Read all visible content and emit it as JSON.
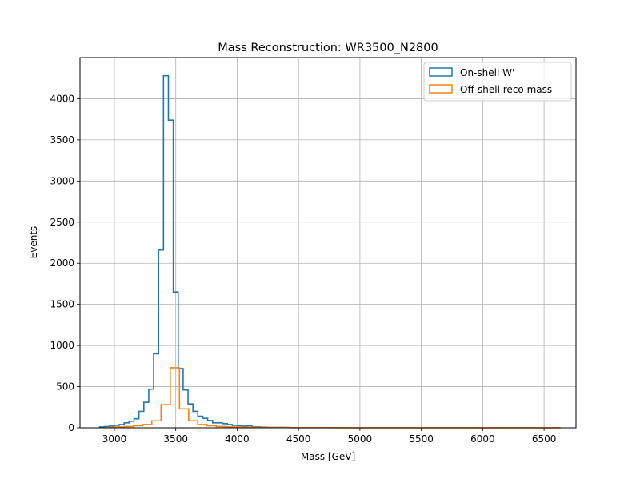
{
  "chart_data": {
    "type": "histogram",
    "title": "Mass Reconstruction: WR3500_N2800",
    "xlabel": "Mass [GeV]",
    "ylabel": "Events",
    "xlim": [
      2720,
      6760
    ],
    "ylim": [
      0,
      4500
    ],
    "xticks": [
      3000,
      3500,
      4000,
      4500,
      5000,
      5500,
      6000,
      6500
    ],
    "yticks": [
      0,
      500,
      1000,
      1500,
      2000,
      2500,
      3000,
      3500,
      4000
    ],
    "grid": true,
    "legend_position": "top-right",
    "series": [
      {
        "name": "On-shell W'",
        "color": "#1f77b4",
        "bin_edges": [
          2880,
          2920,
          2960,
          3000,
          3040,
          3080,
          3120,
          3160,
          3200,
          3240,
          3280,
          3320,
          3360,
          3400,
          3440,
          3480,
          3520,
          3560,
          3600,
          3640,
          3680,
          3720,
          3760,
          3800,
          3840,
          3880,
          3920,
          3960,
          4000,
          4040,
          4080,
          4120,
          4160,
          4200,
          4240,
          4280,
          4320,
          4360,
          4400,
          4440
        ],
        "counts": [
          10,
          15,
          20,
          30,
          40,
          60,
          80,
          110,
          200,
          310,
          470,
          900,
          2160,
          4280,
          3740,
          1650,
          720,
          460,
          290,
          200,
          140,
          115,
          90,
          60,
          60,
          50,
          40,
          30,
          25,
          20,
          25,
          10,
          10,
          8,
          6,
          5,
          5,
          4,
          3
        ]
      },
      {
        "name": "Off-shell reco mass",
        "color": "#ff7f0e",
        "bin_edges": [
          2930,
          3005,
          3080,
          3155,
          3230,
          3305,
          3380,
          3455,
          3530,
          3605,
          3680,
          3755,
          3830,
          3905,
          3980,
          4055,
          4130,
          4205,
          4280,
          4355,
          4430,
          4505,
          4580,
          4655,
          4730,
          4805,
          4880,
          4955,
          5030,
          5105,
          5180,
          5255,
          5330,
          5405,
          5480,
          5555,
          5630,
          5705,
          5780,
          5855,
          5930,
          6005,
          6080,
          6155,
          6230,
          6305,
          6380,
          6455,
          6530,
          6605,
          6630
        ],
        "counts": [
          5,
          10,
          15,
          25,
          40,
          85,
          280,
          730,
          230,
          85,
          40,
          25,
          15,
          10,
          8,
          6,
          5,
          4,
          3,
          3,
          2,
          2,
          2,
          2,
          2,
          1,
          1,
          1,
          1,
          1,
          1,
          1,
          1,
          1,
          1,
          1,
          1,
          1,
          1,
          1,
          1,
          1,
          1,
          1,
          1,
          1,
          1,
          1,
          1,
          1
        ]
      }
    ]
  }
}
